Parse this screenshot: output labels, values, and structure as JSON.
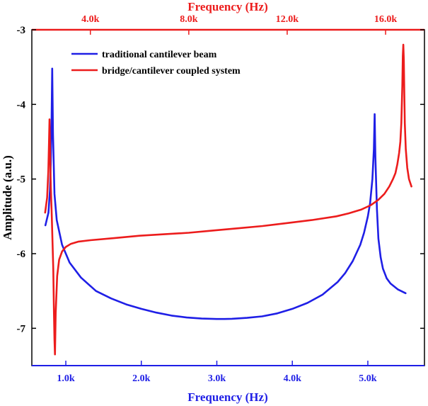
{
  "chart_data": {
    "type": "line",
    "ylabel": "Amplitude (a.u.)",
    "ylim": [
      -7.5,
      -3
    ],
    "yticks": [
      -7,
      -6,
      -5,
      -4,
      -3
    ],
    "bottom_axis": {
      "label": "Frequency (Hz)",
      "color": "#1f1fe6",
      "xlim": [
        550,
        5750
      ],
      "ticks": [
        1000,
        2000,
        3000,
        4000,
        5000
      ],
      "tick_labels": [
        "1.0k",
        "2.0k",
        "3.0k",
        "4.0k",
        "5.0k"
      ]
    },
    "top_axis": {
      "label": "Frequency (Hz)",
      "color": "#ec1c1c",
      "xlim": [
        1620,
        17580
      ],
      "ticks": [
        4000,
        8000,
        12000,
        16000
      ],
      "tick_labels": [
        "4.0k",
        "8.0k",
        "12.0k",
        "16.0k"
      ]
    },
    "legend": {
      "position": "top-left",
      "entries": [
        {
          "label": "traditional cantilever beam",
          "color": "#1f1fe6"
        },
        {
          "label": "bridge/cantilever coupled system",
          "color": "#ec1c1c"
        }
      ]
    },
    "series": [
      {
        "name": "traditional cantilever beam",
        "axis": "bottom",
        "color": "#1f1fe6",
        "x": [
          730,
          770,
          790,
          800,
          810,
          820,
          830,
          850,
          880,
          950,
          1050,
          1200,
          1400,
          1600,
          1800,
          2000,
          2200,
          2400,
          2600,
          2800,
          3000,
          3100,
          3200,
          3400,
          3600,
          3800,
          4000,
          4200,
          4400,
          4600,
          4700,
          4800,
          4900,
          4950,
          5000,
          5030,
          5060,
          5080,
          5090,
          5100,
          5120,
          5140,
          5170,
          5200,
          5250,
          5300,
          5400,
          5500
        ],
        "y": [
          -5.62,
          -5.45,
          -5.15,
          -4.8,
          -4.3,
          -3.52,
          -4.4,
          -5.2,
          -5.55,
          -5.88,
          -6.12,
          -6.32,
          -6.5,
          -6.6,
          -6.68,
          -6.74,
          -6.79,
          -6.83,
          -6.855,
          -6.87,
          -6.875,
          -6.875,
          -6.872,
          -6.86,
          -6.84,
          -6.8,
          -6.74,
          -6.66,
          -6.55,
          -6.38,
          -6.26,
          -6.1,
          -5.88,
          -5.72,
          -5.5,
          -5.32,
          -5.0,
          -4.6,
          -4.13,
          -4.7,
          -5.4,
          -5.8,
          -6.05,
          -6.2,
          -6.33,
          -6.4,
          -6.48,
          -6.53
        ]
      },
      {
        "name": "bridge/cantilever coupled system",
        "axis": "top",
        "color": "#ec1c1c",
        "x": [
          2160,
          2240,
          2290,
          2320,
          2340,
          2360,
          2390,
          2430,
          2490,
          2520,
          2540,
          2560,
          2590,
          2650,
          2730,
          2850,
          3000,
          3200,
          3500,
          4000,
          5000,
          6000,
          7000,
          8000,
          9000,
          10000,
          11000,
          12000,
          13000,
          14000,
          14500,
          15000,
          15400,
          15700,
          15950,
          16150,
          16300,
          16400,
          16480,
          16550,
          16600,
          16640,
          16680,
          16700,
          16720,
          16740,
          16760,
          16780,
          16820,
          16880,
          16950,
          17050
        ],
        "y": [
          -5.45,
          -5.25,
          -4.9,
          -4.5,
          -4.2,
          -4.6,
          -5.1,
          -5.5,
          -6.2,
          -6.8,
          -7.15,
          -7.35,
          -6.8,
          -6.3,
          -6.08,
          -5.97,
          -5.91,
          -5.87,
          -5.84,
          -5.82,
          -5.79,
          -5.76,
          -5.74,
          -5.72,
          -5.69,
          -5.66,
          -5.63,
          -5.59,
          -5.55,
          -5.5,
          -5.46,
          -5.41,
          -5.35,
          -5.28,
          -5.2,
          -5.1,
          -5.0,
          -4.92,
          -4.8,
          -4.65,
          -4.5,
          -4.25,
          -3.75,
          -3.35,
          -3.2,
          -3.4,
          -3.85,
          -4.25,
          -4.6,
          -4.85,
          -5.0,
          -5.1
        ]
      }
    ]
  }
}
